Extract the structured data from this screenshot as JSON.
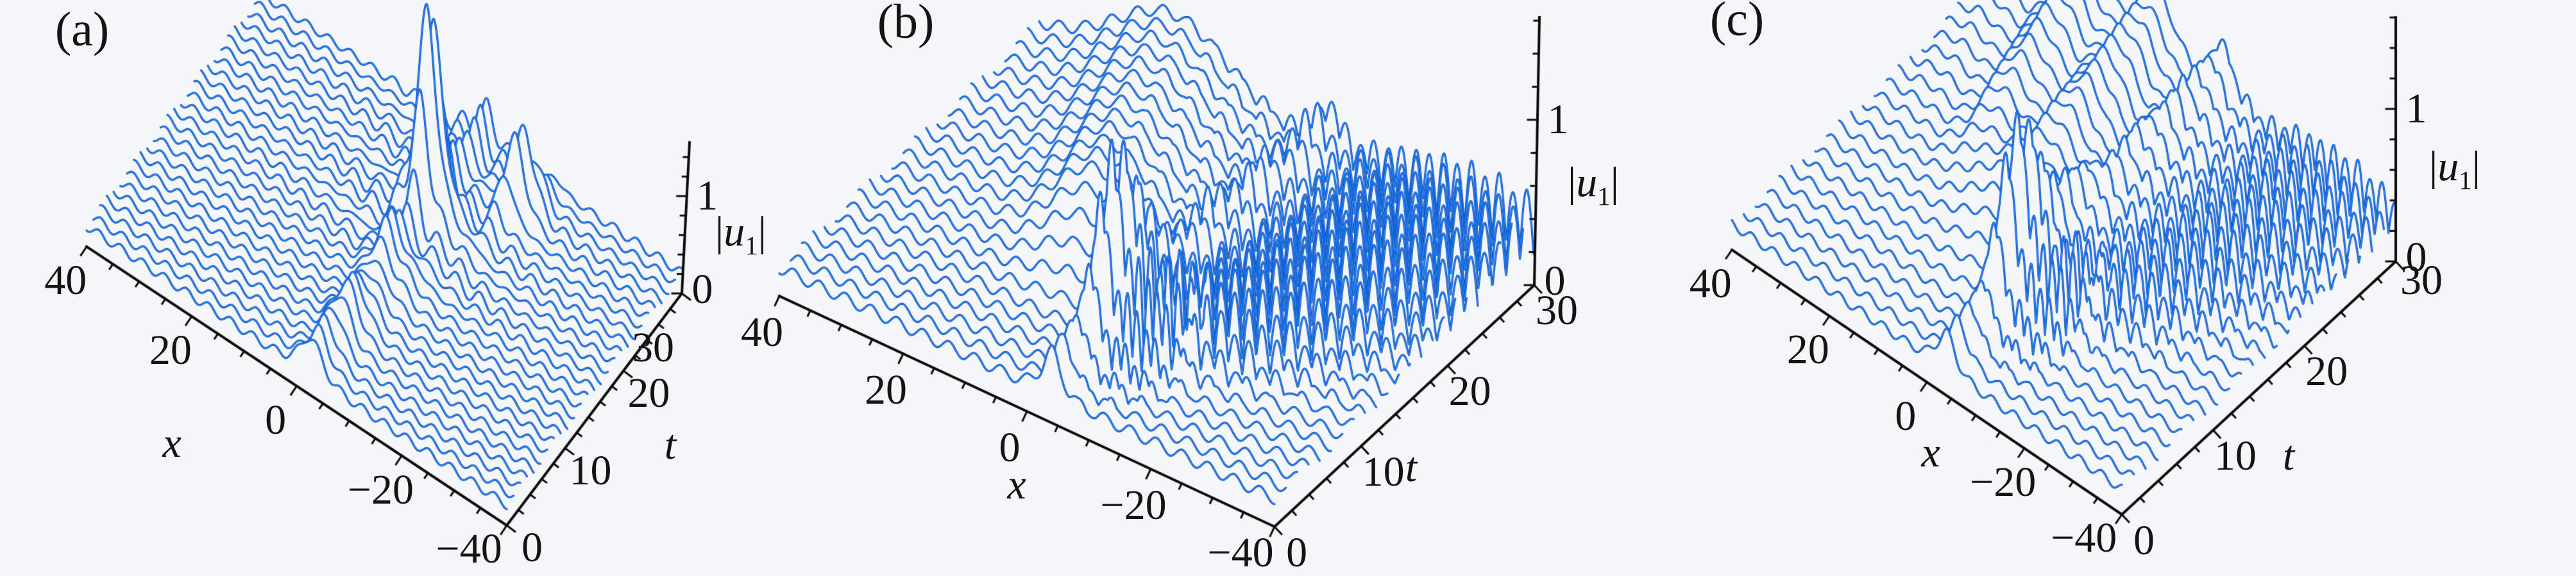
{
  "figure": {
    "background": "#f5f6f7",
    "colors": {
      "curve_dark": "#0d52c8",
      "curve_core": "#2f8af0",
      "curve_fill": "#f5f6f7",
      "axis": "#0a0a0a",
      "text": "#141414"
    }
  },
  "chart_data": [
    {
      "label": "(a)",
      "type": "line",
      "subtype": "waterfall3d",
      "title": "",
      "xlabel": "x",
      "tlabel": "t",
      "zlabel": "|u_1|",
      "x_range": [
        40,
        -40
      ],
      "x_ticks": [
        40,
        20,
        0,
        -20,
        -40
      ],
      "x_minor": 5,
      "t_range": [
        0,
        30
      ],
      "t_ticks": [
        0,
        10,
        20,
        30
      ],
      "t_minor": 2,
      "z_ticks": [
        0,
        1
      ],
      "z_minor": 0.2,
      "z_axis_max": 1.55,
      "n_curves": 27,
      "x_samples": 640,
      "layout": {
        "origin40": [
          135,
          385
        ],
        "xvec": [
          655,
          435
        ],
        "tvec": [
          273,
          -362
        ],
        "zscale": 152,
        "zdx": 12,
        "letter_pos": [
          128,
          46
        ],
        "xname_pos": [
          268,
          692
        ],
        "tname_pos": [
          1045,
          695
        ],
        "t_last_off": [
          -45,
          85
        ]
      },
      "model": {
        "bg": [
          0.21,
          0.045,
          1.5,
          -1.15
        ],
        "comp": [
          {
            "kind": "ridge",
            "x0": -3,
            "v": 0,
            "w": 1.8,
            "a0": 0.3,
            "pulses": [
              [
                1.9,
                20,
                1.9
              ],
              [
                0.28,
                13,
                2.2
              ],
              [
                0.16,
                6,
                2.0
              ]
            ]
          },
          {
            "kind": "ridge",
            "x0": -2,
            "v": -0.45,
            "w": 1.5,
            "a0": 0.1,
            "pulses": [
              [
                0.8,
                26,
                2.0
              ]
            ]
          },
          {
            "kind": "fringe",
            "a": 0.15,
            "decay": 9,
            "k": 1.35,
            "x0": -3,
            "t0": 12,
            "tr": 4
          }
        ]
      }
    },
    {
      "label": "(b)",
      "type": "line",
      "subtype": "waterfall3d",
      "title": "",
      "xlabel": "x",
      "tlabel": "t",
      "zlabel": "|u_1|",
      "x_range": [
        40,
        -40
      ],
      "x_ticks": [
        40,
        20,
        0,
        -20,
        -40
      ],
      "x_minor": 5,
      "t_range": [
        0,
        30
      ],
      "t_ticks": [
        0,
        10,
        20,
        30
      ],
      "t_minor": 2,
      "z_ticks": [
        0,
        1
      ],
      "z_minor": 0.2,
      "z_axis_max": 1.62,
      "n_curves": 24,
      "x_samples": 640,
      "layout": {
        "origin40": [
          1215,
          462
        ],
        "xvec": [
          772,
          360
        ],
        "tvec": [
          405,
          -377
        ],
        "zscale": 258,
        "zdx": 8,
        "letter_pos": [
          1412,
          34
        ],
        "xname_pos": [
          1585,
          757
        ],
        "tname_pos": [
          2200,
          730
        ],
        "t_last_off": [
          35,
          40
        ]
      },
      "model": {
        "bg": [
          0.17,
          0.035,
          1.5,
          -1.0
        ],
        "comp": [
          {
            "kind": "ridge",
            "x0": -4,
            "v": -0.1,
            "w": 1.3,
            "a0": 0.26,
            "pulses": [
              [
                0.8,
                7,
                3.0
              ]
            ],
            "mod": [
              0.3,
              2.4
            ]
          },
          {
            "kind": "fan",
            "a": 0.45,
            "tc": 7,
            "tw": 3.5,
            "c0": -8,
            "vc": -0.3,
            "w0": 5,
            "vw": 0,
            "k": 2.1,
            "wt": 0,
            "abs": 1
          },
          {
            "kind": "fan",
            "a": 0.38,
            "t0": 4,
            "tr": 7,
            "c0": -8,
            "vc": -0.8,
            "w0": 4,
            "vw": 0.7,
            "k": 1.4,
            "wt": 0.45,
            "abs": 1
          },
          {
            "kind": "hump",
            "a": 0.45,
            "x0": 0,
            "vx": 0.6,
            "w0": 5.5,
            "vw": 0.25,
            "t0": 6,
            "tr": 9
          }
        ]
      }
    },
    {
      "label": "(c)",
      "type": "line",
      "subtype": "waterfall3d",
      "title": "",
      "xlabel": "x",
      "tlabel": "t",
      "zlabel": "|u_1|",
      "x_range": [
        40,
        -40
      ],
      "x_ticks": [
        40,
        20,
        0,
        -20,
        -40
      ],
      "x_minor": 5,
      "t_range": [
        0,
        30
      ],
      "t_ticks": [
        0,
        10,
        20,
        30
      ],
      "t_minor": 2,
      "z_ticks": [
        0,
        1
      ],
      "z_minor": 0.2,
      "z_axis_max": 1.6,
      "n_curves": 24,
      "x_samples": 640,
      "layout": {
        "origin40": [
          2700,
          390
        ],
        "xvec": [
          608,
          413
        ],
        "tvec": [
          427,
          -395
        ],
        "zscale": 238,
        "zdx": 0,
        "letter_pos": [
          2708,
          30
        ],
        "xname_pos": [
          3010,
          707
        ],
        "tname_pos": [
          3568,
          712
        ],
        "t_last_off": [
          40,
          30
        ]
      },
      "model": {
        "bg": [
          0.17,
          0.03,
          1.4,
          -1.0
        ],
        "comp": [
          {
            "kind": "ridge",
            "x0": -4,
            "v": 0,
            "w": 1.6,
            "a0": 0.24,
            "pulses": [
              [
                0.85,
                8,
                3.4
              ]
            ],
            "mod": [
              0.2,
              2.0
            ]
          },
          {
            "kind": "fan",
            "a": 0.4,
            "tc": 8,
            "tw": 3.5,
            "c0": -8,
            "vc": -0.3,
            "w0": 5.5,
            "vw": 0,
            "k": 1.7,
            "wt": 0,
            "abs": 1
          },
          {
            "kind": "hump",
            "a": 0.42,
            "x0": -2,
            "vx": 0.55,
            "w0": 5,
            "vw": 0.55,
            "t0": 5,
            "tr": 10
          },
          {
            "kind": "fan",
            "a": 0.15,
            "t0": 12,
            "tr": 8,
            "c0": 2,
            "vc": 0.5,
            "w0": 9,
            "vw": 0.45,
            "k": 0.42,
            "wt": -0.12,
            "abs": 0
          },
          {
            "kind": "fan",
            "a": 0.3,
            "t0": 5,
            "tr": 8,
            "c0": -9,
            "vc": -0.7,
            "w0": 4,
            "vw": 0.5,
            "k": 1.25,
            "wt": 0.4,
            "abs": 1
          }
        ]
      }
    }
  ]
}
